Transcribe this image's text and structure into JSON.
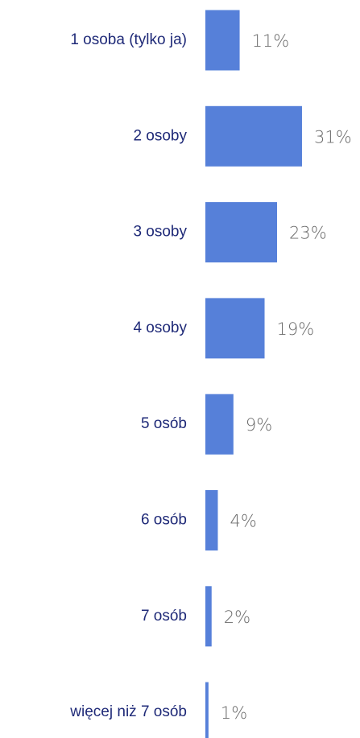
{
  "chart_data": {
    "type": "barh",
    "categories": [
      "1 osoba (tylko ja)",
      "2 osoby",
      "3 osoby",
      "4 osoby",
      "5 osób",
      "6 osób",
      "7 osób",
      "więcej niż 7 osób"
    ],
    "values": [
      11,
      31,
      23,
      19,
      9,
      4,
      2,
      1
    ],
    "value_labels": [
      "11%",
      "31%",
      "23%",
      "19%",
      "9%",
      "4%",
      "2%",
      "1%"
    ],
    "color": "#5680d9"
  }
}
